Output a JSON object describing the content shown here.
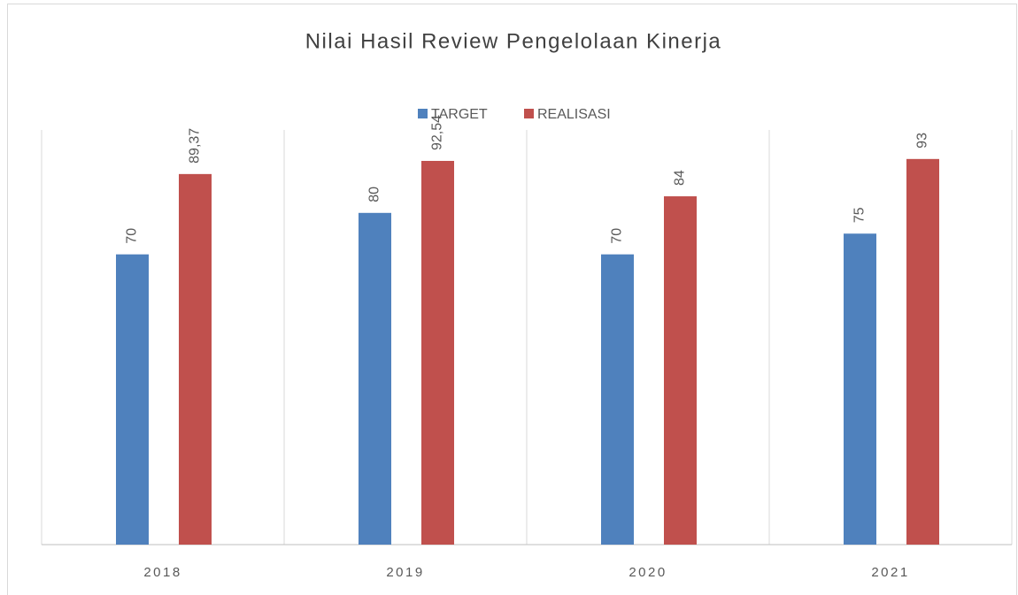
{
  "chart_data": {
    "type": "bar",
    "title": "Nilai Hasil Review Pengelolaan Kinerja",
    "categories": [
      "2018",
      "2019",
      "2020",
      "2021"
    ],
    "series": [
      {
        "name": "TARGET",
        "color": "#4f81bd",
        "values": [
          70,
          80,
          70,
          75
        ],
        "value_labels": [
          "70",
          "80",
          "70",
          "75"
        ]
      },
      {
        "name": "REALISASI",
        "color": "#c0504d",
        "values": [
          89.37,
          92.54,
          84,
          93
        ],
        "value_labels": [
          "89,37",
          "92,54",
          "84",
          "93"
        ]
      }
    ],
    "ylim": [
      0,
      100
    ],
    "legend": "top"
  }
}
